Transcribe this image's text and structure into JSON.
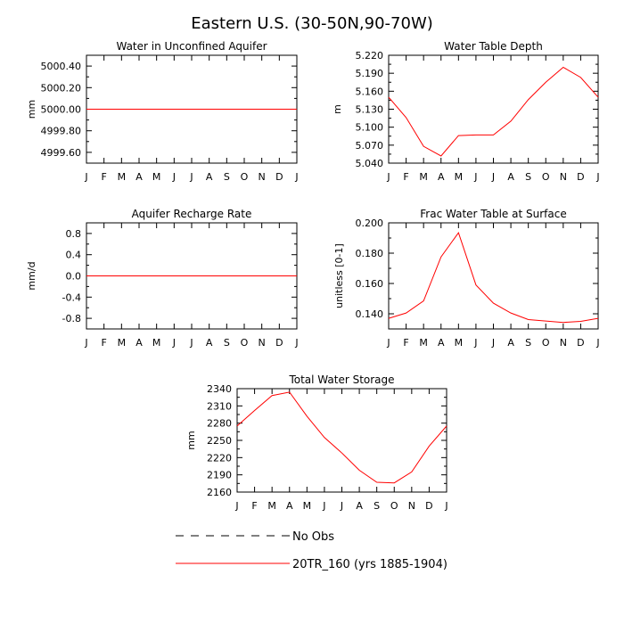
{
  "figure_title": "Eastern U.S. (30-50N,90-70W)",
  "legend": {
    "items": [
      {
        "label": "No Obs",
        "color": "#000000",
        "dash": "dashed"
      },
      {
        "label": "20TR_160 (yrs 1885-1904)",
        "color": "#ff0000",
        "dash": "solid"
      }
    ]
  },
  "chart_data": [
    {
      "id": "wua",
      "type": "line",
      "title": "Water in Unconfined Aquifer",
      "ylabel": "mm",
      "xlabel": "",
      "x": [
        "J",
        "F",
        "M",
        "A",
        "M",
        "J",
        "J",
        "A",
        "S",
        "O",
        "N",
        "D",
        "J"
      ],
      "ylim": [
        4999.5,
        5000.5
      ],
      "yticks": [
        4999.6,
        4999.8,
        5000.0,
        5000.2,
        5000.4
      ],
      "ytick_labels": [
        "4999.60",
        "4999.80",
        "5000.00",
        "5000.20",
        "5000.40"
      ],
      "grid": false,
      "series": [
        {
          "name": "20TR_160 (yrs 1885-1904)",
          "color": "#ff0000",
          "values": [
            5000,
            5000,
            5000,
            5000,
            5000,
            5000,
            5000,
            5000,
            5000,
            5000,
            5000,
            5000,
            5000
          ]
        }
      ]
    },
    {
      "id": "wtd",
      "type": "line",
      "title": "Water Table Depth",
      "ylabel": "m",
      "xlabel": "",
      "x": [
        "J",
        "F",
        "M",
        "A",
        "M",
        "J",
        "J",
        "A",
        "S",
        "O",
        "N",
        "D",
        "J"
      ],
      "ylim": [
        5.04,
        5.22
      ],
      "yticks": [
        5.04,
        5.07,
        5.1,
        5.13,
        5.16,
        5.19,
        5.22
      ],
      "ytick_labels": [
        "5.040",
        "5.070",
        "5.100",
        "5.130",
        "5.160",
        "5.190",
        "5.220"
      ],
      "grid": false,
      "series": [
        {
          "name": "20TR_160 (yrs 1885-1904)",
          "color": "#ff0000",
          "values": [
            5.15,
            5.116,
            5.068,
            5.052,
            5.086,
            5.087,
            5.087,
            5.11,
            5.146,
            5.175,
            5.2,
            5.183,
            5.15
          ]
        }
      ]
    },
    {
      "id": "arr",
      "type": "line",
      "title": "Aquifer Recharge Rate",
      "ylabel": "mm/d",
      "xlabel": "",
      "x": [
        "J",
        "F",
        "M",
        "A",
        "M",
        "J",
        "J",
        "A",
        "S",
        "O",
        "N",
        "D",
        "J"
      ],
      "ylim": [
        -1.0,
        1.0
      ],
      "yticks": [
        -0.8,
        -0.4,
        0.0,
        0.4,
        0.8
      ],
      "ytick_labels": [
        "-0.8",
        "-0.4",
        "0.0",
        "0.4",
        "0.8"
      ],
      "grid": false,
      "series": [
        {
          "name": "20TR_160 (yrs 1885-1904)",
          "color": "#ff0000",
          "values": [
            0,
            0,
            0,
            0,
            0,
            0,
            0,
            0,
            0,
            0,
            0,
            0,
            0
          ]
        }
      ]
    },
    {
      "id": "fwt",
      "type": "line",
      "title": "Frac Water Table at Surface",
      "ylabel": "unitless [0-1]",
      "xlabel": "",
      "x": [
        "J",
        "F",
        "M",
        "A",
        "M",
        "J",
        "J",
        "A",
        "S",
        "O",
        "N",
        "D",
        "J"
      ],
      "ylim": [
        0.13,
        0.2
      ],
      "yticks": [
        0.14,
        0.16,
        0.18,
        0.2
      ],
      "ytick_labels": [
        "0.140",
        "0.160",
        "0.180",
        "0.200"
      ],
      "grid": false,
      "series": [
        {
          "name": "20TR_160 (yrs 1885-1904)",
          "color": "#ff0000",
          "values": [
            0.137,
            0.1405,
            0.1485,
            0.1775,
            0.1935,
            0.159,
            0.147,
            0.1405,
            0.1362,
            0.1352,
            0.1343,
            0.135,
            0.137
          ]
        }
      ]
    },
    {
      "id": "tws",
      "type": "line",
      "title": "Total Water Storage",
      "ylabel": "mm",
      "xlabel": "",
      "x": [
        "J",
        "F",
        "M",
        "A",
        "M",
        "J",
        "J",
        "A",
        "S",
        "O",
        "N",
        "D",
        "J"
      ],
      "ylim": [
        2160,
        2340
      ],
      "yticks": [
        2160,
        2190,
        2220,
        2250,
        2280,
        2310,
        2340
      ],
      "ytick_labels": [
        "2160",
        "2190",
        "2220",
        "2250",
        "2280",
        "2310",
        "2340"
      ],
      "grid": false,
      "series": [
        {
          "name": "20TR_160 (yrs 1885-1904)",
          "color": "#ff0000",
          "values": [
            2275,
            2302,
            2328,
            2334,
            2292,
            2255,
            2228,
            2198,
            2177,
            2176,
            2195,
            2240,
            2275
          ]
        }
      ]
    }
  ]
}
